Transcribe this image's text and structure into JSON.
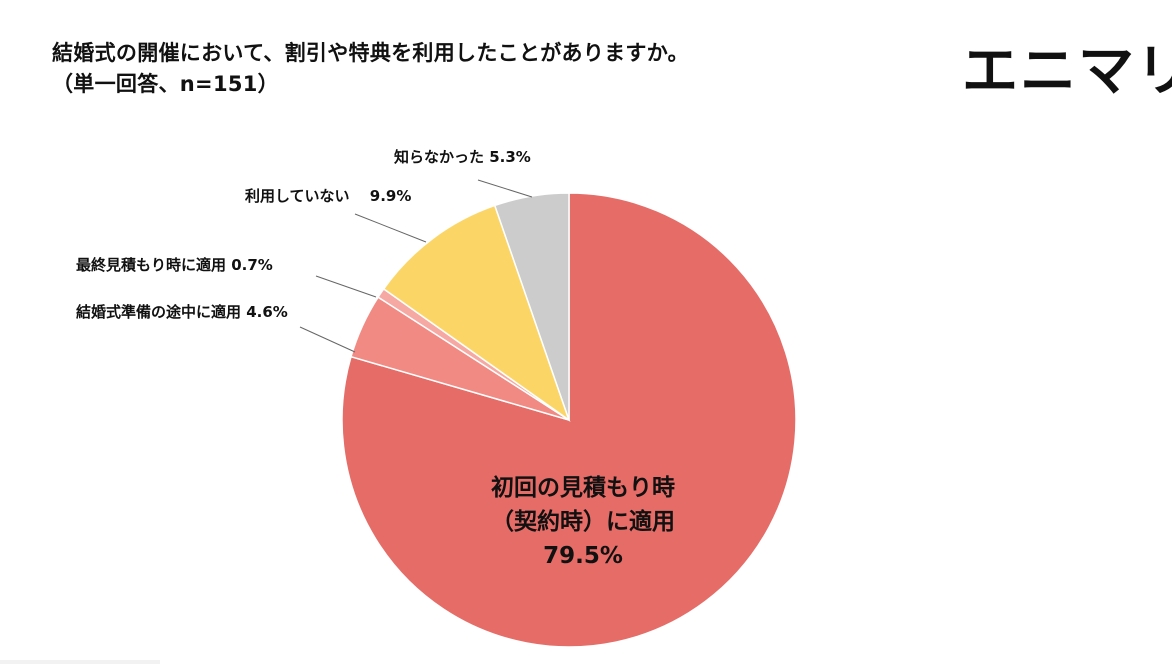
{
  "title": {
    "line1": "結婚式の開催において、割引や特典を利用したことがありますか。",
    "line2": "（単一回答、n=151）"
  },
  "brand": {
    "logo_text": "エニマリ"
  },
  "chart_data": {
    "type": "pie",
    "start_angle_deg": 0,
    "direction": "clockwise",
    "slices": [
      {
        "label_lines": [
          "初回の見積もり時",
          "（契約時）に適用",
          "79.5%"
        ],
        "label": "初回の見積もり時（契約時）に適用",
        "value": 79.5,
        "color": "#e56c67",
        "label_style": "inside"
      },
      {
        "label_lines": [
          "結婚式準備の途中に適用 4.6%"
        ],
        "label": "結婚式準備の途中に適用",
        "value": 4.6,
        "color": "#f28a84",
        "label_style": "leader"
      },
      {
        "label_lines": [
          "最終見積もり時に適用 0.7%"
        ],
        "label": "最終見積もり時に適用",
        "value": 0.7,
        "color": "#f6a8a3",
        "label_style": "leader"
      },
      {
        "label_lines": [
          "利用していない　 9.9%"
        ],
        "label": "利用していない",
        "value": 9.9,
        "color": "#fbd667",
        "label_style": "leader"
      },
      {
        "label_lines": [
          "知らなかった 5.3%"
        ],
        "label": "知らなかった",
        "value": 5.3,
        "color": "#cccccc",
        "label_style": "leader"
      }
    ]
  }
}
